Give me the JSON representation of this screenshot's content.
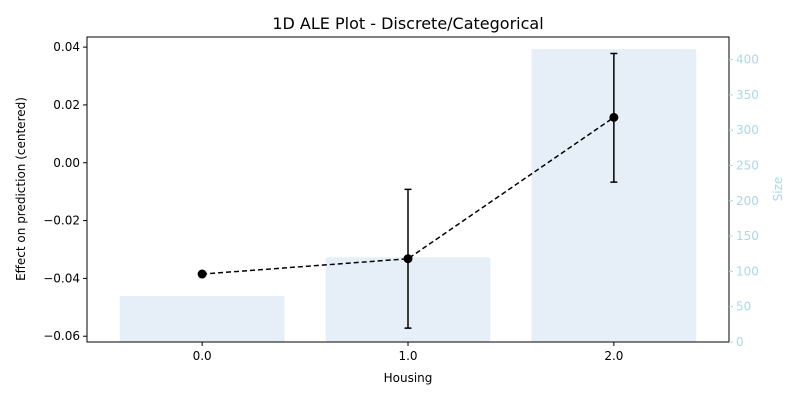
{
  "chart_data": {
    "type": "bar+line",
    "title": "1D ALE Plot - Discrete/Categorical",
    "xlabel": "Housing",
    "ylabel": "Effect on prediction (centered)",
    "y2label": "Size",
    "categories": [
      "0.0",
      "1.0",
      "2.0"
    ],
    "sizes": [
      65,
      120,
      415
    ],
    "ale": [
      -0.0385,
      -0.0332,
      0.0157
    ],
    "ale_lower": [
      -0.0385,
      -0.0572,
      -0.0067
    ],
    "ale_upper": [
      -0.0385,
      -0.0092,
      0.0378
    ],
    "ylim": [
      -0.062,
      0.0435
    ],
    "y2lim": [
      0,
      432
    ],
    "yticks": [
      "−0.06",
      "−0.04",
      "−0.02",
      "0.00",
      "0.02",
      "0.04"
    ],
    "ytick_values": [
      -0.06,
      -0.04,
      -0.02,
      0.0,
      0.02,
      0.04
    ],
    "y2ticks": [
      "0",
      "50",
      "100",
      "150",
      "200",
      "250",
      "300",
      "350",
      "400"
    ],
    "y2tick_values": [
      0,
      50,
      100,
      150,
      200,
      250,
      300,
      350,
      400
    ],
    "colors": {
      "bar": "#e6eff8",
      "line": "#000000",
      "right_axis": "#add8e6"
    }
  }
}
